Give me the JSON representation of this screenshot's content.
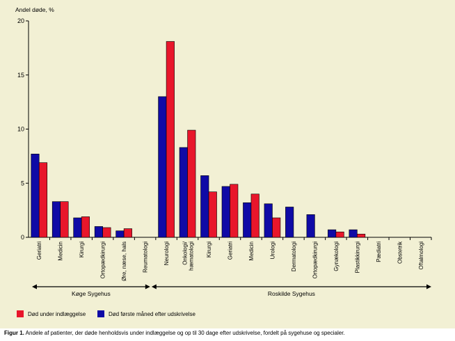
{
  "caption": {
    "label": "Figur 1.",
    "text": "Andele af patienter, der døde henholdsvis under indlæggelse og op til 30 dage efter udskrivelse, fordelt på sygehuse og specialer."
  },
  "legend": [
    {
      "name": "Død under indlæggelse",
      "color": "#e8162b"
    },
    {
      "name": "Død første måned efter udskrivelse",
      "color": "#0f0aa6"
    }
  ],
  "chart_data": {
    "type": "bar",
    "title": "",
    "ylabel": "Andel døde, %",
    "xlabel": "",
    "ylim": [
      0,
      20
    ],
    "yticks": [
      0,
      5,
      10,
      15,
      20
    ],
    "grid": false,
    "legend_position": "bottom-left",
    "categories": [
      "Geriatri",
      "Medicin",
      "Kirurgi",
      "Ortopædkirurgi",
      "Øre, næse, hals",
      "Reumatologi",
      "Neurologi",
      "Onkologi/ hæmatologi",
      "Kirurgi",
      "Geriatri",
      "Medicin",
      "Urologi",
      "Dermatologi",
      "Ortopædkirurgi",
      "Gynækologi",
      "Plastikkirurgi",
      "Pædiatri",
      "Obstetrik",
      "Oftalmologi"
    ],
    "series": [
      {
        "name": "Død første måned efter udskrivelse",
        "color": "#0f0aa6",
        "values": [
          7.7,
          3.3,
          1.8,
          1.0,
          0.6,
          0,
          13.0,
          8.3,
          5.7,
          4.7,
          3.2,
          3.1,
          2.8,
          2.1,
          0.7,
          0.7,
          0,
          0,
          0
        ]
      },
      {
        "name": "Død under indlæggelse",
        "color": "#e8162b",
        "values": [
          6.9,
          3.3,
          1.9,
          0.9,
          0.8,
          0,
          18.1,
          9.9,
          4.2,
          4.9,
          4.0,
          1.8,
          0,
          0,
          0.5,
          0.3,
          0,
          0,
          0
        ]
      }
    ],
    "groups": [
      {
        "label": "Køge Sygehus",
        "from": 0,
        "to": 5
      },
      {
        "label": "Roskilde Sygehus",
        "from": 6,
        "to": 18
      }
    ]
  }
}
